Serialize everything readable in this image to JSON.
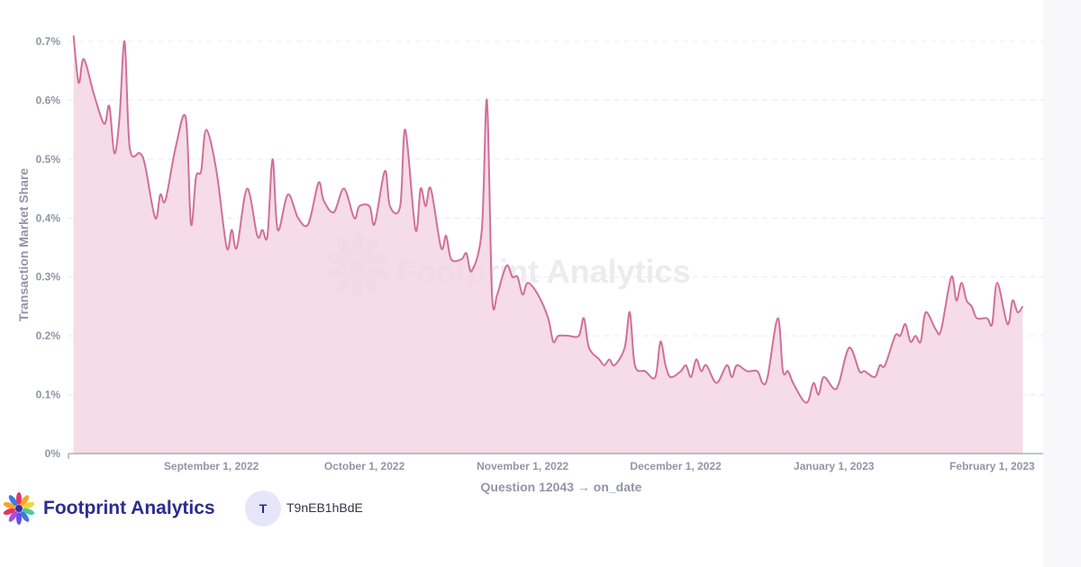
{
  "chart_data": {
    "type": "area",
    "ylabel": "Transaction Market Share",
    "xlabel": "Question 12043 → on_date",
    "y_ticks": [
      "0%",
      "0.1%",
      "0.2%",
      "0.3%",
      "0.4%",
      "0.5%",
      "0.6%",
      "0.7%"
    ],
    "ylim": [
      0,
      0.7
    ],
    "y_unit": "%",
    "x_ticks": [
      "September 1, 2022",
      "October 1, 2022",
      "November 1, 2022",
      "December 1, 2022",
      "January 1, 2023",
      "February 1, 2023"
    ],
    "grid": "horizontal dashed",
    "series": [
      {
        "color": "#d0709a",
        "fill": "#f3d6e3",
        "points": [
          [
            "2022-08-05",
            0.71
          ],
          [
            "2022-08-06",
            0.63
          ],
          [
            "2022-08-07",
            0.67
          ],
          [
            "2022-08-09",
            0.61
          ],
          [
            "2022-08-11",
            0.56
          ],
          [
            "2022-08-12",
            0.59
          ],
          [
            "2022-08-13",
            0.51
          ],
          [
            "2022-08-14",
            0.57
          ],
          [
            "2022-08-15",
            0.7
          ],
          [
            "2022-08-16",
            0.52
          ],
          [
            "2022-08-18",
            0.51
          ],
          [
            "2022-08-19",
            0.49
          ],
          [
            "2022-08-21",
            0.4
          ],
          [
            "2022-08-22",
            0.44
          ],
          [
            "2022-08-23",
            0.43
          ],
          [
            "2022-08-25",
            0.52
          ],
          [
            "2022-08-27",
            0.57
          ],
          [
            "2022-08-28",
            0.39
          ],
          [
            "2022-08-29",
            0.47
          ],
          [
            "2022-08-30",
            0.48
          ],
          [
            "2022-08-31",
            0.55
          ],
          [
            "2022-09-02",
            0.48
          ],
          [
            "2022-09-04",
            0.35
          ],
          [
            "2022-09-05",
            0.38
          ],
          [
            "2022-09-06",
            0.35
          ],
          [
            "2022-09-08",
            0.45
          ],
          [
            "2022-09-10",
            0.37
          ],
          [
            "2022-09-11",
            0.38
          ],
          [
            "2022-09-12",
            0.37
          ],
          [
            "2022-09-13",
            0.5
          ],
          [
            "2022-09-14",
            0.38
          ],
          [
            "2022-09-16",
            0.44
          ],
          [
            "2022-09-18",
            0.4
          ],
          [
            "2022-09-20",
            0.39
          ],
          [
            "2022-09-22",
            0.46
          ],
          [
            "2022-09-23",
            0.43
          ],
          [
            "2022-09-25",
            0.41
          ],
          [
            "2022-09-27",
            0.45
          ],
          [
            "2022-09-29",
            0.4
          ],
          [
            "2022-09-30",
            0.42
          ],
          [
            "2022-10-02",
            0.42
          ],
          [
            "2022-10-03",
            0.39
          ],
          [
            "2022-10-05",
            0.48
          ],
          [
            "2022-10-06",
            0.42
          ],
          [
            "2022-10-08",
            0.42
          ],
          [
            "2022-10-09",
            0.55
          ],
          [
            "2022-10-11",
            0.38
          ],
          [
            "2022-10-12",
            0.45
          ],
          [
            "2022-10-13",
            0.42
          ],
          [
            "2022-10-14",
            0.45
          ],
          [
            "2022-10-16",
            0.35
          ],
          [
            "2022-10-17",
            0.37
          ],
          [
            "2022-10-18",
            0.33
          ],
          [
            "2022-10-20",
            0.33
          ],
          [
            "2022-10-21",
            0.34
          ],
          [
            "2022-10-22",
            0.31
          ],
          [
            "2022-10-24",
            0.38
          ],
          [
            "2022-10-25",
            0.6
          ],
          [
            "2022-10-26",
            0.27
          ],
          [
            "2022-10-27",
            0.27
          ],
          [
            "2022-10-28",
            0.3
          ],
          [
            "2022-10-29",
            0.32
          ],
          [
            "2022-10-30",
            0.3
          ],
          [
            "2022-10-31",
            0.3
          ],
          [
            "2022-11-01",
            0.27
          ],
          [
            "2022-11-02",
            0.29
          ],
          [
            "2022-11-04",
            0.27
          ],
          [
            "2022-11-06",
            0.23
          ],
          [
            "2022-11-07",
            0.19
          ],
          [
            "2022-11-08",
            0.2
          ],
          [
            "2022-11-10",
            0.2
          ],
          [
            "2022-11-12",
            0.2
          ],
          [
            "2022-11-13",
            0.23
          ],
          [
            "2022-11-14",
            0.18
          ],
          [
            "2022-11-16",
            0.16
          ],
          [
            "2022-11-17",
            0.15
          ],
          [
            "2022-11-18",
            0.16
          ],
          [
            "2022-11-19",
            0.15
          ],
          [
            "2022-11-21",
            0.18
          ],
          [
            "2022-11-22",
            0.24
          ],
          [
            "2022-11-23",
            0.15
          ],
          [
            "2022-11-25",
            0.14
          ],
          [
            "2022-11-27",
            0.13
          ],
          [
            "2022-11-28",
            0.19
          ],
          [
            "2022-11-29",
            0.15
          ],
          [
            "2022-11-30",
            0.13
          ],
          [
            "2022-12-02",
            0.14
          ],
          [
            "2022-12-03",
            0.15
          ],
          [
            "2022-12-04",
            0.13
          ],
          [
            "2022-12-05",
            0.16
          ],
          [
            "2022-12-06",
            0.14
          ],
          [
            "2022-12-07",
            0.15
          ],
          [
            "2022-12-09",
            0.12
          ],
          [
            "2022-12-11",
            0.15
          ],
          [
            "2022-12-12",
            0.13
          ],
          [
            "2022-12-13",
            0.15
          ],
          [
            "2022-12-15",
            0.14
          ],
          [
            "2022-12-17",
            0.14
          ],
          [
            "2022-12-18",
            0.12
          ],
          [
            "2022-12-19",
            0.13
          ],
          [
            "2022-12-21",
            0.23
          ],
          [
            "2022-12-22",
            0.14
          ],
          [
            "2022-12-23",
            0.14
          ],
          [
            "2022-12-24",
            0.12
          ],
          [
            "2022-12-26",
            0.09
          ],
          [
            "2022-12-27",
            0.09
          ],
          [
            "2022-12-28",
            0.12
          ],
          [
            "2022-12-29",
            0.1
          ],
          [
            "2022-12-30",
            0.13
          ],
          [
            "2023-01-01",
            0.11
          ],
          [
            "2023-01-02",
            0.12
          ],
          [
            "2023-01-04",
            0.18
          ],
          [
            "2023-01-06",
            0.14
          ],
          [
            "2023-01-07",
            0.14
          ],
          [
            "2023-01-09",
            0.13
          ],
          [
            "2023-01-10",
            0.15
          ],
          [
            "2023-01-11",
            0.15
          ],
          [
            "2023-01-13",
            0.2
          ],
          [
            "2023-01-14",
            0.2
          ],
          [
            "2023-01-15",
            0.22
          ],
          [
            "2023-01-16",
            0.19
          ],
          [
            "2023-01-17",
            0.2
          ],
          [
            "2023-01-18",
            0.19
          ],
          [
            "2023-01-19",
            0.24
          ],
          [
            "2023-01-21",
            0.21
          ],
          [
            "2023-01-22",
            0.21
          ],
          [
            "2023-01-24",
            0.3
          ],
          [
            "2023-01-25",
            0.26
          ],
          [
            "2023-01-26",
            0.29
          ],
          [
            "2023-01-27",
            0.26
          ],
          [
            "2023-01-28",
            0.25
          ],
          [
            "2023-01-29",
            0.23
          ],
          [
            "2023-01-31",
            0.23
          ],
          [
            "2023-02-01",
            0.22
          ],
          [
            "2023-02-02",
            0.29
          ],
          [
            "2023-02-04",
            0.22
          ],
          [
            "2023-02-05",
            0.26
          ],
          [
            "2023-02-06",
            0.24
          ],
          [
            "2023-02-07",
            0.25
          ]
        ]
      }
    ]
  },
  "watermark": {
    "text": "Footprint Analytics"
  },
  "footer": {
    "brand_name": "Footprint Analytics",
    "avatar_initial": "T",
    "user_name": "T9nEB1hBdE"
  }
}
